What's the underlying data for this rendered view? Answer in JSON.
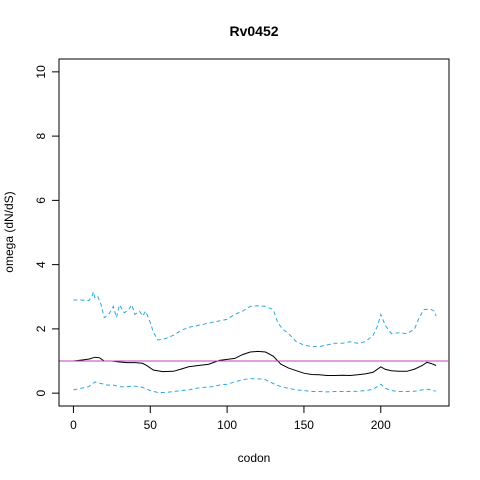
{
  "chart_data": {
    "type": "line",
    "title": "Rv0452",
    "xlabel": "codon",
    "ylabel": "omega (dN/dS)",
    "xlim": [
      -9.4,
      244.4
    ],
    "ylim": [
      -0.4,
      10.4
    ],
    "x_ticks": [
      0,
      50,
      100,
      150,
      200
    ],
    "y_ticks": [
      0,
      2,
      4,
      6,
      8,
      10
    ],
    "grid": false,
    "reference_line": {
      "y": 1,
      "color": "#bb44bb"
    },
    "series": [
      {
        "style": "solid",
        "color": "#000000",
        "points": [
          [
            0,
            1.0
          ],
          [
            5,
            1.03
          ],
          [
            10,
            1.06
          ],
          [
            14,
            1.12
          ],
          [
            17,
            1.1
          ],
          [
            20,
            1.0
          ],
          [
            25,
            1.0
          ],
          [
            30,
            0.97
          ],
          [
            35,
            0.95
          ],
          [
            40,
            0.95
          ],
          [
            45,
            0.93
          ],
          [
            48,
            0.85
          ],
          [
            52,
            0.72
          ],
          [
            58,
            0.67
          ],
          [
            65,
            0.68
          ],
          [
            70,
            0.75
          ],
          [
            75,
            0.82
          ],
          [
            80,
            0.85
          ],
          [
            88,
            0.9
          ],
          [
            95,
            1.02
          ],
          [
            100,
            1.05
          ],
          [
            105,
            1.08
          ],
          [
            110,
            1.2
          ],
          [
            115,
            1.28
          ],
          [
            120,
            1.3
          ],
          [
            125,
            1.28
          ],
          [
            130,
            1.15
          ],
          [
            135,
            0.9
          ],
          [
            140,
            0.78
          ],
          [
            145,
            0.7
          ],
          [
            150,
            0.62
          ],
          [
            155,
            0.58
          ],
          [
            160,
            0.57
          ],
          [
            165,
            0.55
          ],
          [
            170,
            0.55
          ],
          [
            175,
            0.56
          ],
          [
            180,
            0.55
          ],
          [
            185,
            0.57
          ],
          [
            190,
            0.6
          ],
          [
            195,
            0.65
          ],
          [
            200,
            0.82
          ],
          [
            203,
            0.74
          ],
          [
            207,
            0.7
          ],
          [
            212,
            0.68
          ],
          [
            217,
            0.68
          ],
          [
            222,
            0.75
          ],
          [
            227,
            0.86
          ],
          [
            230,
            0.96
          ],
          [
            233,
            0.92
          ],
          [
            236,
            0.86
          ]
        ]
      },
      {
        "style": "dashed",
        "color": "#2ba8e0",
        "points": [
          [
            0,
            2.9
          ],
          [
            5,
            2.9
          ],
          [
            10,
            2.88
          ],
          [
            12,
            3.0
          ],
          [
            13,
            3.15
          ],
          [
            14,
            2.95
          ],
          [
            16,
            3.0
          ],
          [
            18,
            2.75
          ],
          [
            20,
            2.35
          ],
          [
            23,
            2.45
          ],
          [
            26,
            2.7
          ],
          [
            28,
            2.35
          ],
          [
            30,
            2.75
          ],
          [
            33,
            2.5
          ],
          [
            36,
            2.6
          ],
          [
            38,
            2.75
          ],
          [
            40,
            2.45
          ],
          [
            43,
            2.55
          ],
          [
            45,
            2.4
          ],
          [
            47,
            2.55
          ],
          [
            50,
            2.2
          ],
          [
            52,
            1.9
          ],
          [
            55,
            1.65
          ],
          [
            60,
            1.7
          ],
          [
            65,
            1.8
          ],
          [
            70,
            1.95
          ],
          [
            75,
            2.05
          ],
          [
            80,
            2.1
          ],
          [
            85,
            2.15
          ],
          [
            90,
            2.2
          ],
          [
            95,
            2.25
          ],
          [
            100,
            2.3
          ],
          [
            105,
            2.45
          ],
          [
            110,
            2.55
          ],
          [
            115,
            2.7
          ],
          [
            120,
            2.72
          ],
          [
            125,
            2.7
          ],
          [
            130,
            2.6
          ],
          [
            133,
            2.2
          ],
          [
            136,
            2.0
          ],
          [
            140,
            1.85
          ],
          [
            145,
            1.6
          ],
          [
            150,
            1.5
          ],
          [
            155,
            1.45
          ],
          [
            160,
            1.45
          ],
          [
            165,
            1.5
          ],
          [
            170,
            1.55
          ],
          [
            175,
            1.55
          ],
          [
            180,
            1.6
          ],
          [
            185,
            1.55
          ],
          [
            190,
            1.6
          ],
          [
            195,
            1.8
          ],
          [
            198,
            2.1
          ],
          [
            200,
            2.45
          ],
          [
            203,
            2.1
          ],
          [
            207,
            1.85
          ],
          [
            212,
            1.88
          ],
          [
            217,
            1.85
          ],
          [
            222,
            2.0
          ],
          [
            225,
            2.35
          ],
          [
            228,
            2.6
          ],
          [
            232,
            2.62
          ],
          [
            235,
            2.55
          ],
          [
            236,
            2.4
          ]
        ]
      },
      {
        "style": "dashed",
        "color": "#2ba8e0",
        "points": [
          [
            0,
            0.1
          ],
          [
            5,
            0.15
          ],
          [
            10,
            0.2
          ],
          [
            14,
            0.35
          ],
          [
            18,
            0.3
          ],
          [
            22,
            0.25
          ],
          [
            26,
            0.25
          ],
          [
            30,
            0.2
          ],
          [
            35,
            0.2
          ],
          [
            40,
            0.22
          ],
          [
            45,
            0.18
          ],
          [
            50,
            0.08
          ],
          [
            55,
            0.02
          ],
          [
            60,
            0.02
          ],
          [
            65,
            0.05
          ],
          [
            70,
            0.08
          ],
          [
            75,
            0.1
          ],
          [
            80,
            0.15
          ],
          [
            85,
            0.18
          ],
          [
            90,
            0.2
          ],
          [
            95,
            0.25
          ],
          [
            100,
            0.28
          ],
          [
            105,
            0.35
          ],
          [
            110,
            0.42
          ],
          [
            115,
            0.45
          ],
          [
            120,
            0.45
          ],
          [
            125,
            0.42
          ],
          [
            130,
            0.3
          ],
          [
            135,
            0.2
          ],
          [
            140,
            0.15
          ],
          [
            145,
            0.1
          ],
          [
            150,
            0.08
          ],
          [
            155,
            0.05
          ],
          [
            160,
            0.05
          ],
          [
            165,
            0.04
          ],
          [
            170,
            0.05
          ],
          [
            175,
            0.05
          ],
          [
            180,
            0.05
          ],
          [
            185,
            0.06
          ],
          [
            190,
            0.08
          ],
          [
            195,
            0.12
          ],
          [
            200,
            0.28
          ],
          [
            203,
            0.15
          ],
          [
            207,
            0.08
          ],
          [
            212,
            0.05
          ],
          [
            217,
            0.05
          ],
          [
            222,
            0.06
          ],
          [
            227,
            0.1
          ],
          [
            231,
            0.12
          ],
          [
            236,
            0.06
          ]
        ]
      }
    ]
  }
}
